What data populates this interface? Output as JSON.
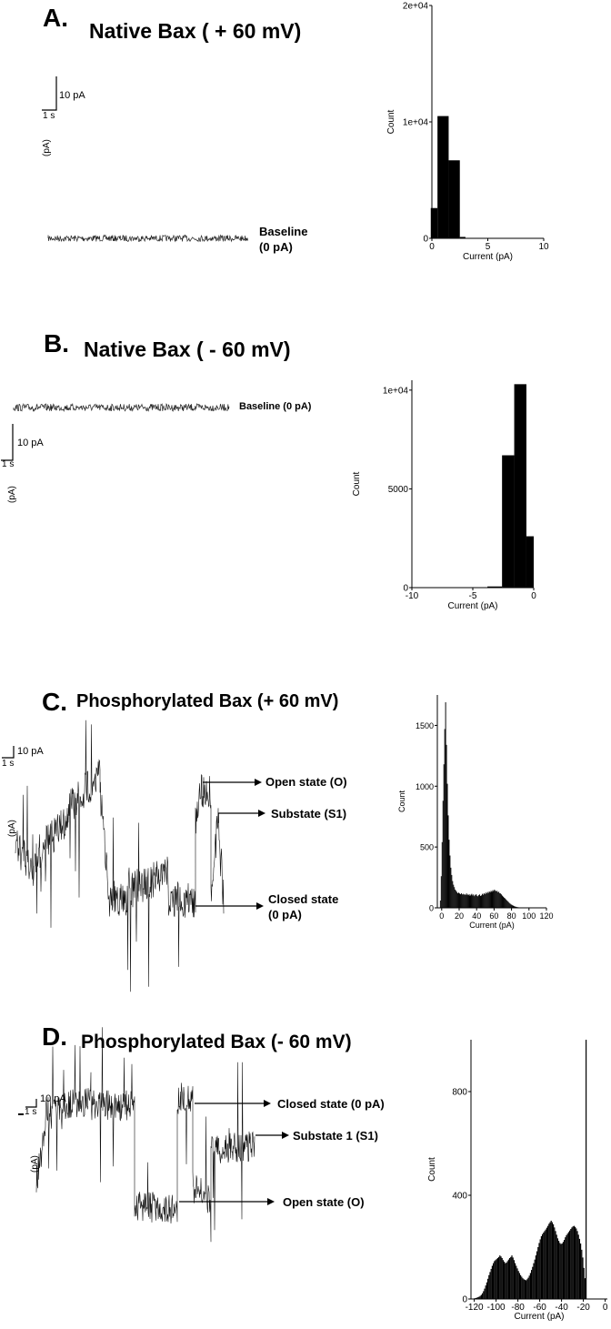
{
  "panels": [
    {
      "letter": "A.",
      "title": "Native Bax  ( + 60 mV)",
      "scale_current": "10 pA",
      "scale_time": "1 s",
      "axis_unit": "(pA)",
      "annotations": [
        {
          "text": "Baseline"
        },
        {
          "text": "(0 pA)"
        }
      ]
    },
    {
      "letter": "B.",
      "title": "Native Bax  ( - 60 mV)",
      "scale_current": "10 pA",
      "scale_time": "1 s",
      "axis_unit": "(pA)",
      "annotations": [
        {
          "text": "Baseline (0 pA)"
        }
      ]
    },
    {
      "letter": "C.",
      "title": "Phosphorylated Bax  (+ 60 mV)",
      "scale_current": "10 pA",
      "scale_time": "1 s",
      "axis_unit": "(pA)",
      "annotations": [
        {
          "text": "Open state (O)"
        },
        {
          "text": "Substate (S1)"
        },
        {
          "text": "Closed state"
        },
        {
          "text": "(0 pA)"
        }
      ]
    },
    {
      "letter": "D.",
      "title": "Phosphorylated Bax (- 60 mV)",
      "scale_current": "10 pA",
      "scale_time": "1 s",
      "axis_unit": "(pA)",
      "annotations": [
        {
          "text": "Closed state (0 pA)"
        },
        {
          "text": "Substate 1 (S1)"
        },
        {
          "text": "Open state (O)"
        }
      ]
    }
  ],
  "chart_data": [
    {
      "type": "bar",
      "panel": "A",
      "xlabel": "Current (pA)",
      "ylabel": "Count",
      "xlim": [
        0,
        10
      ],
      "ylim": [
        0,
        20000
      ],
      "xticks": [
        "0",
        "5",
        "10"
      ],
      "yticks": [
        "0",
        "1e+04",
        "2e+04"
      ],
      "bins": [
        {
          "x0": -0.1,
          "x1": 0.5,
          "count": 2600
        },
        {
          "x0": 0.5,
          "x1": 1.5,
          "count": 10500
        },
        {
          "x0": 1.5,
          "x1": 2.5,
          "count": 6700
        },
        {
          "x0": 2.5,
          "x1": 3.0,
          "count": 120
        }
      ]
    },
    {
      "type": "bar",
      "panel": "B",
      "xlabel": "Current (pA)",
      "ylabel": "Count",
      "xlim": [
        -10,
        0
      ],
      "ylim": [
        0,
        10500
      ],
      "xticks": [
        "-10",
        "-5",
        "0"
      ],
      "yticks": [
        "0",
        "5000",
        "1e+04"
      ],
      "bins": [
        {
          "x0": -3.8,
          "x1": -2.6,
          "count": 60
        },
        {
          "x0": -2.6,
          "x1": -1.6,
          "count": 6700
        },
        {
          "x0": -1.6,
          "x1": -0.6,
          "count": 10300
        },
        {
          "x0": -0.6,
          "x1": 0.0,
          "count": 2600
        }
      ]
    },
    {
      "type": "bar",
      "panel": "C",
      "xlabel": "Current (pA)",
      "ylabel": "Count",
      "xlim": [
        -5,
        120
      ],
      "ylim": [
        0,
        1750
      ],
      "xticks": [
        "0",
        "20",
        "40",
        "60",
        "80",
        "100",
        "120"
      ],
      "yticks": [
        "0",
        "500",
        "1000",
        "1500"
      ],
      "bin_width": 1,
      "bin_start": -2,
      "counts": [
        60,
        260,
        540,
        880,
        1180,
        1470,
        1690,
        1340,
        1020,
        760,
        560,
        430,
        330,
        270,
        220,
        190,
        170,
        150,
        140,
        130,
        120,
        125,
        118,
        112,
        120,
        110,
        115,
        108,
        112,
        105,
        118,
        110,
        104,
        112,
        100,
        108,
        115,
        102,
        110,
        96,
        105,
        112,
        100,
        95,
        104,
        110,
        98,
        102,
        115,
        108,
        120,
        112,
        125,
        118,
        130,
        122,
        135,
        128,
        140,
        132,
        145,
        138,
        150,
        142,
        135,
        140,
        128,
        132,
        120,
        118,
        110,
        100,
        92,
        84,
        78,
        70,
        62,
        55,
        48,
        40,
        34,
        28,
        24,
        20,
        16,
        12,
        10,
        8,
        6,
        5,
        4,
        3,
        2
      ]
    },
    {
      "type": "bar",
      "panel": "D",
      "xlabel": "Current (pA)",
      "ylabel": "Count",
      "xlim": [
        -123,
        2
      ],
      "ylim": [
        0,
        1000
      ],
      "xticks": [
        "-120",
        "-100",
        "-80",
        "-60",
        "-40",
        "-20",
        "0"
      ],
      "yticks": [
        "0",
        "400",
        "800"
      ],
      "bin_width": 1,
      "bin_start": -120,
      "counts": [
        3,
        4,
        5,
        7,
        9,
        12,
        16,
        22,
        30,
        40,
        52,
        64,
        78,
        92,
        104,
        116,
        128,
        138,
        146,
        150,
        154,
        158,
        162,
        168,
        164,
        158,
        150,
        144,
        138,
        140,
        146,
        152,
        158,
        162,
        168,
        160,
        150,
        138,
        128,
        118,
        108,
        100,
        92,
        86,
        80,
        76,
        74,
        72,
        76,
        82,
        90,
        100,
        112,
        124,
        138,
        152,
        168,
        184,
        200,
        216,
        230,
        242,
        250,
        256,
        262,
        268,
        275,
        282,
        290,
        296,
        302,
        296,
        288,
        276,
        262,
        248,
        234,
        224,
        216,
        212,
        214,
        220,
        228,
        238,
        246,
        252,
        258,
        264,
        270,
        276,
        280,
        282,
        278,
        272,
        262,
        248,
        232,
        214,
        190,
        160,
        120,
        80,
        1000
      ]
    }
  ]
}
